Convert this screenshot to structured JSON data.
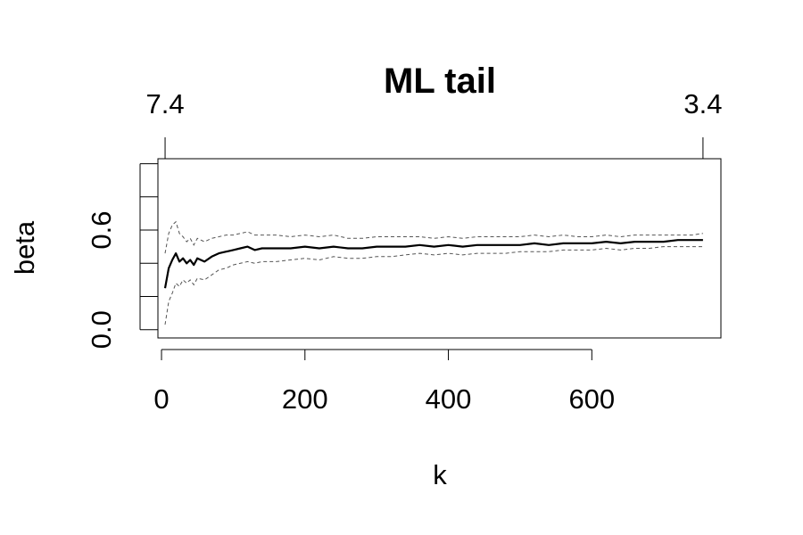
{
  "chart_data": {
    "type": "line",
    "title": "ML tail",
    "xlabel": "k",
    "ylabel": "beta",
    "xlim": [
      -5,
      780
    ],
    "ylim": [
      -0.05,
      1.03
    ],
    "x_ticks": [
      {
        "value": 0,
        "label": "0"
      },
      {
        "value": 200,
        "label": "200"
      },
      {
        "value": 400,
        "label": "400"
      },
      {
        "value": 600,
        "label": "600"
      }
    ],
    "y_ticks": [
      {
        "value": 0.0,
        "label": "0.0"
      },
      {
        "value": 0.2,
        "label": ""
      },
      {
        "value": 0.4,
        "label": ""
      },
      {
        "value": 0.6,
        "label": "0.6"
      },
      {
        "value": 0.8,
        "label": ""
      },
      {
        "value": 1.0,
        "label": ""
      }
    ],
    "top_axis_ticks": [
      {
        "k": 5,
        "label": "7.4"
      },
      {
        "k": 755,
        "label": "3.4"
      }
    ],
    "grid": false,
    "series": [
      {
        "role": "estimate",
        "style": "solid",
        "x": [
          5,
          10,
          15,
          20,
          25,
          30,
          35,
          40,
          45,
          50,
          60,
          70,
          80,
          90,
          100,
          110,
          120,
          130,
          140,
          160,
          180,
          200,
          220,
          240,
          260,
          280,
          300,
          320,
          340,
          360,
          380,
          400,
          420,
          440,
          460,
          480,
          500,
          520,
          540,
          560,
          580,
          600,
          620,
          640,
          660,
          680,
          700,
          720,
          740,
          755
        ],
        "y": [
          0.25,
          0.37,
          0.42,
          0.46,
          0.41,
          0.43,
          0.4,
          0.42,
          0.39,
          0.43,
          0.41,
          0.44,
          0.46,
          0.47,
          0.48,
          0.49,
          0.5,
          0.48,
          0.49,
          0.49,
          0.49,
          0.5,
          0.49,
          0.5,
          0.49,
          0.49,
          0.5,
          0.5,
          0.5,
          0.51,
          0.5,
          0.51,
          0.5,
          0.51,
          0.51,
          0.51,
          0.51,
          0.52,
          0.51,
          0.52,
          0.52,
          0.52,
          0.53,
          0.52,
          0.53,
          0.53,
          0.53,
          0.54,
          0.54,
          0.54
        ]
      },
      {
        "role": "upper-bound",
        "style": "dashed",
        "x": [
          5,
          10,
          15,
          20,
          25,
          30,
          35,
          40,
          45,
          50,
          60,
          70,
          80,
          90,
          100,
          110,
          120,
          130,
          140,
          160,
          180,
          200,
          220,
          240,
          260,
          280,
          300,
          320,
          340,
          360,
          380,
          400,
          420,
          440,
          460,
          480,
          500,
          520,
          540,
          560,
          580,
          600,
          620,
          640,
          660,
          680,
          700,
          720,
          740,
          755
        ],
        "y": [
          0.46,
          0.58,
          0.63,
          0.65,
          0.58,
          0.56,
          0.53,
          0.55,
          0.51,
          0.55,
          0.53,
          0.55,
          0.56,
          0.57,
          0.57,
          0.58,
          0.59,
          0.57,
          0.57,
          0.57,
          0.56,
          0.57,
          0.56,
          0.57,
          0.55,
          0.55,
          0.56,
          0.56,
          0.56,
          0.56,
          0.55,
          0.56,
          0.55,
          0.56,
          0.56,
          0.56,
          0.56,
          0.57,
          0.56,
          0.57,
          0.56,
          0.56,
          0.57,
          0.56,
          0.57,
          0.57,
          0.57,
          0.57,
          0.57,
          0.58
        ]
      },
      {
        "role": "lower-bound",
        "style": "dashed",
        "x": [
          5,
          10,
          15,
          20,
          25,
          30,
          35,
          40,
          45,
          50,
          60,
          70,
          80,
          90,
          100,
          110,
          120,
          130,
          140,
          160,
          180,
          200,
          220,
          240,
          260,
          280,
          300,
          320,
          340,
          360,
          380,
          400,
          420,
          440,
          460,
          480,
          500,
          520,
          540,
          560,
          580,
          600,
          620,
          640,
          660,
          680,
          700,
          720,
          740,
          755
        ],
        "y": [
          0.03,
          0.17,
          0.22,
          0.28,
          0.26,
          0.3,
          0.28,
          0.3,
          0.27,
          0.31,
          0.3,
          0.33,
          0.36,
          0.37,
          0.39,
          0.4,
          0.41,
          0.4,
          0.41,
          0.41,
          0.42,
          0.43,
          0.42,
          0.44,
          0.43,
          0.43,
          0.44,
          0.44,
          0.45,
          0.46,
          0.45,
          0.46,
          0.45,
          0.46,
          0.46,
          0.46,
          0.47,
          0.47,
          0.47,
          0.48,
          0.48,
          0.48,
          0.49,
          0.48,
          0.49,
          0.49,
          0.5,
          0.5,
          0.5,
          0.5
        ]
      }
    ]
  }
}
